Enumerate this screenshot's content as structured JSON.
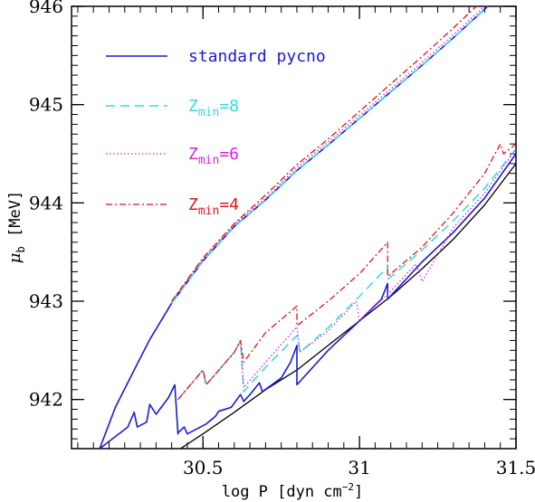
{
  "chart_data": {
    "type": "line",
    "xlabel": "log P [dyn cm",
    "xlabel_sup": "−2",
    "xlabel_end": "]",
    "ylabel": "μ",
    "ylabel_sub": "b",
    "ylabel_unit": "[MeV]",
    "xlim": [
      30.08,
      31.5
    ],
    "ylim": [
      941.5,
      946.0
    ],
    "xticks": [
      30.5,
      31,
      31.5
    ],
    "xtick_labels": [
      "30.5",
      "31",
      "31.5"
    ],
    "yticks": [
      942,
      943,
      944,
      945,
      946
    ],
    "ytick_labels": [
      "942",
      "943",
      "944",
      "945",
      "946"
    ],
    "legend_position": "top-left",
    "legend": [
      {
        "series": "standard",
        "text": "standard pycno",
        "sub": "",
        "after": ""
      },
      {
        "series": "zmin8",
        "text": "Z",
        "sub": "min",
        "after": "=8"
      },
      {
        "series": "zmin6",
        "text": "Z",
        "sub": "min",
        "after": "=6"
      },
      {
        "series": "zmin4",
        "text": "Z",
        "sub": "min",
        "after": "=4"
      }
    ],
    "series": [
      {
        "id": "smooth",
        "color": "#000000",
        "dash": "",
        "width": 1.3,
        "x": [
          30.21,
          30.3,
          30.4,
          30.5,
          30.6,
          30.7,
          30.8,
          30.9,
          31.0,
          31.1,
          31.2,
          31.3,
          31.4,
          31.5
        ],
        "y": [
          941.0,
          941.21,
          941.44,
          941.65,
          941.87,
          942.1,
          942.3,
          942.55,
          942.8,
          943.05,
          943.33,
          943.63,
          943.98,
          944.4
        ]
      },
      {
        "id": "standard_upper",
        "color": "#1a1ad9",
        "dash": "",
        "width": 1.6,
        "x": [
          30.17,
          30.22,
          30.28,
          30.33,
          30.4,
          30.5,
          30.6,
          30.7,
          30.8,
          30.9,
          31.0,
          31.1,
          31.2,
          31.3,
          31.41
        ],
        "y": [
          941.5,
          941.92,
          942.3,
          942.61,
          942.98,
          943.41,
          943.76,
          944.03,
          944.33,
          944.59,
          944.86,
          945.13,
          945.4,
          945.68,
          946.0
        ]
      },
      {
        "id": "zmin8_upper",
        "color": "#33dddd",
        "dash": "10,6",
        "width": 1.5,
        "x": [
          30.4,
          30.5,
          30.6,
          30.7,
          30.8,
          30.9,
          31.0,
          31.1,
          31.2,
          31.3,
          31.41
        ],
        "y": [
          942.98,
          943.41,
          943.76,
          944.03,
          944.33,
          944.59,
          944.86,
          945.13,
          945.4,
          945.68,
          946.0
        ]
      },
      {
        "id": "zmin6_upper",
        "color": "#dd22dd",
        "dash": "1.5,2.5",
        "width": 1.3,
        "x": [
          30.4,
          30.5,
          30.6,
          30.7,
          30.8,
          30.9,
          31.0,
          31.1,
          31.2,
          31.3,
          31.41
        ],
        "y": [
          943.0,
          943.43,
          943.78,
          944.05,
          944.36,
          944.62,
          944.89,
          945.16,
          945.43,
          945.71,
          946.03
        ]
      },
      {
        "id": "zmin4_upper",
        "color": "#e01515",
        "dash": "7,3,2,3",
        "width": 1.3,
        "x": [
          30.4,
          30.5,
          30.6,
          30.7,
          30.8,
          30.9,
          31.0,
          31.1,
          31.2,
          31.3,
          31.4
        ],
        "y": [
          943.0,
          943.44,
          943.79,
          944.08,
          944.39,
          944.65,
          944.93,
          945.21,
          945.49,
          945.78,
          946.08
        ]
      },
      {
        "id": "standard_lower",
        "color": "#1a1ad9",
        "dash": "",
        "width": 1.6,
        "x": [
          30.17,
          30.26,
          30.28,
          30.29,
          30.32,
          30.33,
          30.35,
          30.39,
          30.41,
          30.42,
          30.42,
          30.44,
          30.45,
          30.51,
          30.54,
          30.55,
          30.59,
          30.62,
          30.63,
          30.65,
          30.68,
          30.69,
          30.75,
          30.78,
          30.8,
          30.8,
          30.9,
          31.0,
          31.07,
          31.09,
          31.09,
          31.2,
          31.3,
          31.4,
          31.5
        ],
        "y": [
          941.5,
          941.72,
          941.87,
          941.72,
          941.77,
          941.95,
          941.85,
          942.02,
          942.15,
          941.65,
          941.66,
          941.72,
          941.65,
          941.75,
          941.83,
          941.88,
          941.92,
          942.05,
          941.98,
          942.05,
          942.17,
          942.08,
          942.22,
          942.38,
          942.55,
          942.15,
          942.5,
          942.8,
          943.02,
          943.18,
          943.02,
          943.4,
          943.7,
          944.05,
          944.5
        ]
      },
      {
        "id": "zmin8_lower",
        "color": "#33dddd",
        "dash": "10,6",
        "width": 1.5,
        "x": [
          30.42,
          30.5,
          30.51,
          30.6,
          30.62,
          30.63,
          30.7,
          30.8,
          30.81,
          30.9,
          31.0,
          31.09,
          31.09,
          31.2,
          31.3,
          31.4,
          31.5
        ],
        "y": [
          942.0,
          942.3,
          942.15,
          942.48,
          942.6,
          942.08,
          942.33,
          942.65,
          942.48,
          942.73,
          943.05,
          943.35,
          943.22,
          943.52,
          943.82,
          944.15,
          944.55
        ]
      },
      {
        "id": "zmin6_lower",
        "color": "#dd22dd",
        "dash": "1.5,2.5",
        "width": 1.3,
        "x": [
          30.42,
          30.5,
          30.51,
          30.6,
          30.62,
          30.63,
          30.7,
          30.8,
          30.81,
          30.9,
          30.99,
          31.0,
          31.1,
          31.18,
          31.2,
          31.3,
          31.4,
          31.5
        ],
        "y": [
          942.0,
          942.3,
          942.15,
          942.48,
          942.6,
          942.12,
          942.38,
          942.74,
          942.48,
          942.7,
          943.0,
          942.8,
          943.1,
          943.38,
          943.2,
          943.75,
          944.1,
          944.55
        ]
      },
      {
        "id": "zmin4_lower",
        "color": "#e01515",
        "dash": "7,3,2,3",
        "width": 1.3,
        "x": [
          30.42,
          30.5,
          30.51,
          30.6,
          30.62,
          30.63,
          30.7,
          30.8,
          30.8,
          30.9,
          31.0,
          31.09,
          31.09,
          31.2,
          31.3,
          31.4,
          31.45,
          31.46,
          31.5
        ],
        "y": [
          942.0,
          942.3,
          942.15,
          942.48,
          942.6,
          942.38,
          942.68,
          942.95,
          942.75,
          943.0,
          943.28,
          943.6,
          943.25,
          943.55,
          943.9,
          944.3,
          944.6,
          944.5,
          944.6
        ]
      }
    ]
  }
}
